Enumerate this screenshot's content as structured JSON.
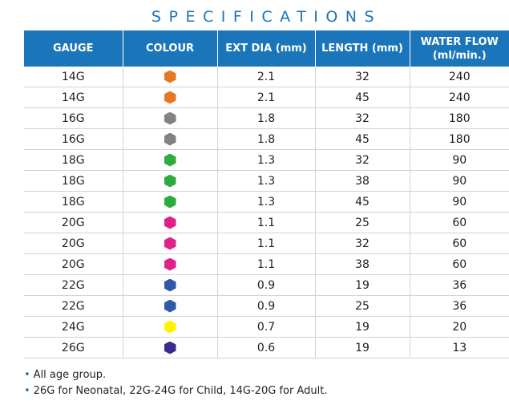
{
  "title": "SPECIFICATIONS",
  "columns": [
    "GAUGE",
    "COLOUR",
    "EXT DIA (mm)",
    "LENGTH (mm)",
    "WATER FLOW (ml/min.)"
  ],
  "rows": [
    {
      "gauge": "14G",
      "colour": "#e87722",
      "ext_dia": "2.1",
      "length": "32",
      "flow": "240"
    },
    {
      "gauge": "14G",
      "colour": "#e87722",
      "ext_dia": "2.1",
      "length": "45",
      "flow": "240"
    },
    {
      "gauge": "16G",
      "colour": "#808285",
      "ext_dia": "1.8",
      "length": "32",
      "flow": "180"
    },
    {
      "gauge": "16G",
      "colour": "#808285",
      "ext_dia": "1.8",
      "length": "45",
      "flow": "180"
    },
    {
      "gauge": "18G",
      "colour": "#2eab3f",
      "ext_dia": "1.3",
      "length": "32",
      "flow": "90"
    },
    {
      "gauge": "18G",
      "colour": "#2eab3f",
      "ext_dia": "1.3",
      "length": "38",
      "flow": "90"
    },
    {
      "gauge": "18G",
      "colour": "#2eab3f",
      "ext_dia": "1.3",
      "length": "45",
      "flow": "90"
    },
    {
      "gauge": "20G",
      "colour": "#e0218a",
      "ext_dia": "1.1",
      "length": "25",
      "flow": "60"
    },
    {
      "gauge": "20G",
      "colour": "#e0218a",
      "ext_dia": "1.1",
      "length": "32",
      "flow": "60"
    },
    {
      "gauge": "20G",
      "colour": "#e0218a",
      "ext_dia": "1.1",
      "length": "38",
      "flow": "60"
    },
    {
      "gauge": "22G",
      "colour": "#2e5aa8",
      "ext_dia": "0.9",
      "length": "19",
      "flow": "36"
    },
    {
      "gauge": "22G",
      "colour": "#2e5aa8",
      "ext_dia": "0.9",
      "length": "25",
      "flow": "36"
    },
    {
      "gauge": "24G",
      "colour": "#fff200",
      "ext_dia": "0.7",
      "length": "19",
      "flow": "20"
    },
    {
      "gauge": "26G",
      "colour": "#3b2a8f",
      "ext_dia": "0.6",
      "length": "19",
      "flow": "13"
    }
  ],
  "notes": [
    "All age group.",
    "26G for Neonatal, 22G-24G for Child, 14G-20G for Adult."
  ],
  "icons": {
    "colour_swatch": "hexagon-icon",
    "note_bullet": "bullet-icon"
  },
  "colors": {
    "header_bg": "#1b75bb",
    "title": "#1b75bb",
    "grid": "#d1d3d4"
  }
}
